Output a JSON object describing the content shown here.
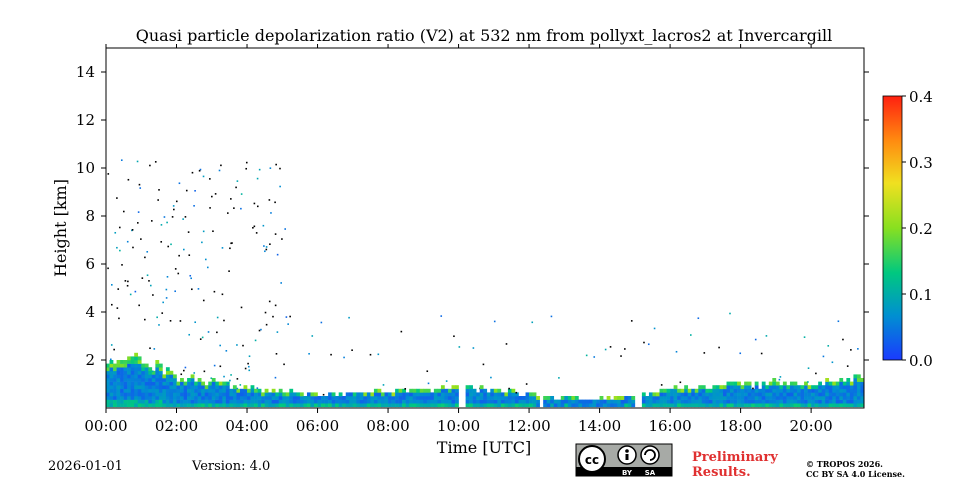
{
  "chart_data": {
    "type": "heatmap",
    "title": "Quasi particle depolarization ratio (V2) at 532 nm from pollyxt_lacros2 at Invercargill",
    "xlabel": "Time [UTC]",
    "ylabel": "Height [km]",
    "xlim_hours": [
      0,
      21.5
    ],
    "ylim_km": [
      0,
      15
    ],
    "x_ticks": [
      {
        "h": 0,
        "label": "00:00"
      },
      {
        "h": 2,
        "label": "02:00"
      },
      {
        "h": 4,
        "label": "04:00"
      },
      {
        "h": 6,
        "label": "06:00"
      },
      {
        "h": 8,
        "label": "08:00"
      },
      {
        "h": 10,
        "label": "10:00"
      },
      {
        "h": 12,
        "label": "12:00"
      },
      {
        "h": 14,
        "label": "14:00"
      },
      {
        "h": 16,
        "label": "16:00"
      },
      {
        "h": 18,
        "label": "18:00"
      },
      {
        "h": 20,
        "label": "20:00"
      }
    ],
    "y_ticks": [
      {
        "km": 2,
        "label": "2"
      },
      {
        "km": 4,
        "label": "4"
      },
      {
        "km": 6,
        "label": "6"
      },
      {
        "km": 8,
        "label": "8"
      },
      {
        "km": 10,
        "label": "10"
      },
      {
        "km": 12,
        "label": "12"
      },
      {
        "km": 14,
        "label": "14"
      }
    ],
    "colorbar": {
      "min": 0.0,
      "max": 0.4,
      "ticks": [
        {
          "v": 0.0,
          "label": "0.0"
        },
        {
          "v": 0.1,
          "label": "0.1"
        },
        {
          "v": 0.2,
          "label": "0.2"
        },
        {
          "v": 0.3,
          "label": "0.3"
        },
        {
          "v": 0.4,
          "label": "0.4"
        }
      ],
      "colormap": [
        "#1a3aff",
        "#0090d0",
        "#00c880",
        "#88e020",
        "#f0e020",
        "#ff8c10",
        "#ff2010"
      ]
    },
    "boundary_layer_top_km": [
      [
        0,
        1.6
      ],
      [
        1,
        2.0
      ],
      [
        2,
        1.2
      ],
      [
        3,
        1.0
      ],
      [
        4,
        0.7
      ],
      [
        6,
        0.5
      ],
      [
        8,
        0.6
      ],
      [
        9,
        0.7
      ],
      [
        10,
        0.8
      ],
      [
        12,
        0.5
      ],
      [
        12.2,
        0.4
      ],
      [
        14,
        0.3
      ],
      [
        15,
        0.4
      ],
      [
        16,
        0.7
      ],
      [
        18,
        0.9
      ],
      [
        20,
        1.0
      ],
      [
        21.5,
        1.2
      ]
    ],
    "layer_base_depol": 0.1,
    "layer_top_depol": 0.2,
    "data_gaps_hours": [
      [
        10.0,
        10.22
      ],
      [
        12.28,
        12.43
      ],
      [
        14.95,
        15.15
      ]
    ],
    "scattered_high_echoes_km": [
      2,
      10.5
    ]
  },
  "footer": {
    "date": "2026-01-01",
    "version": "Version: 4.0",
    "cc_label": "cc",
    "by_label": "BY",
    "sa_label": "SA",
    "prelim_line1": "Preliminary",
    "prelim_line2": "Results.",
    "copyright_line1": "© TROPOS 2026.",
    "copyright_line2": "CC BY SA 4.0 License."
  }
}
